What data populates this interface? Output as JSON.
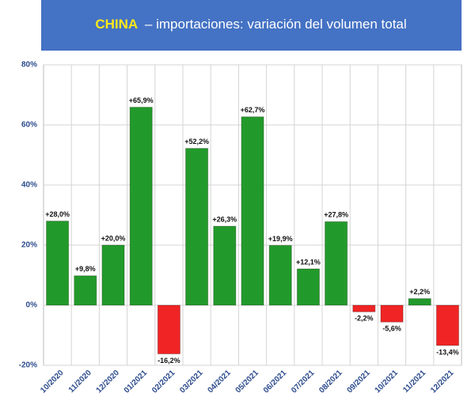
{
  "chart_data": {
    "type": "bar",
    "title_highlight": "CHINA",
    "title": "– importaciones: variación del volumen total",
    "categories": [
      "10/2020",
      "11/2020",
      "12/2020",
      "01/2021",
      "02/2021",
      "03/2021",
      "04/2021",
      "05/2021",
      "06/2021",
      "07/2021",
      "08/2021",
      "09/2021",
      "10/2021",
      "11/2021",
      "12/2021"
    ],
    "values": [
      28.0,
      9.8,
      20.0,
      65.9,
      -16.2,
      52.2,
      26.3,
      62.7,
      19.9,
      12.1,
      27.8,
      -2.2,
      -5.6,
      2.2,
      -13.4
    ],
    "value_labels": [
      "+28,0%",
      "+9,8%",
      "+20,0%",
      "+65,9%",
      "-16,2%",
      "+52,2%",
      "+26,3%",
      "+62,7%",
      "+19,9%",
      "+12,1%",
      "+27,8%",
      "-2,2%",
      "-5,6%",
      "+2,2%",
      "-13,4%"
    ],
    "positive_color": "#229a2b",
    "negative_color": "#f02424",
    "ylim": [
      -20,
      80
    ],
    "yticks": [
      {
        "value": -20,
        "label": "-20%"
      },
      {
        "value": 0,
        "label": "0%"
      },
      {
        "value": 20,
        "label": "20%"
      },
      {
        "value": 40,
        "label": "40%"
      },
      {
        "value": 60,
        "label": "60%"
      },
      {
        "value": 80,
        "label": "80%"
      }
    ],
    "grid": true
  }
}
